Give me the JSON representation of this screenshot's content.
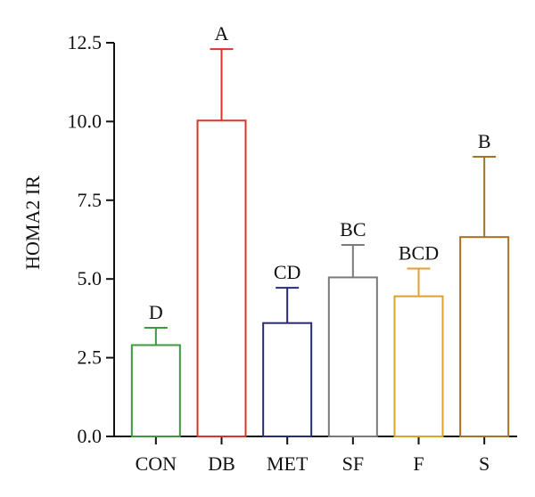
{
  "chart_data": {
    "type": "bar",
    "title": "",
    "xlabel": "",
    "ylabel": "HOMA2 IR",
    "ylim": [
      0,
      12.5
    ],
    "yticks": [
      "0.0",
      "2.5",
      "5.0",
      "7.5",
      "10.0",
      "12.5"
    ],
    "grid": false,
    "categories": [
      "CON",
      "DB",
      "MET",
      "SF",
      "F",
      "S"
    ],
    "values": [
      2.9,
      10.03,
      3.6,
      5.05,
      4.45,
      6.33
    ],
    "error_upper": [
      0.55,
      2.27,
      1.12,
      1.03,
      0.88,
      2.55
    ],
    "significance": [
      "D",
      "A",
      "CD",
      "BC",
      "BCD",
      "B"
    ],
    "colors": [
      "#3a9a3c",
      "#d8352a",
      "#2a2a7a",
      "#7a7a7a",
      "#e0a030",
      "#a8721e"
    ]
  }
}
